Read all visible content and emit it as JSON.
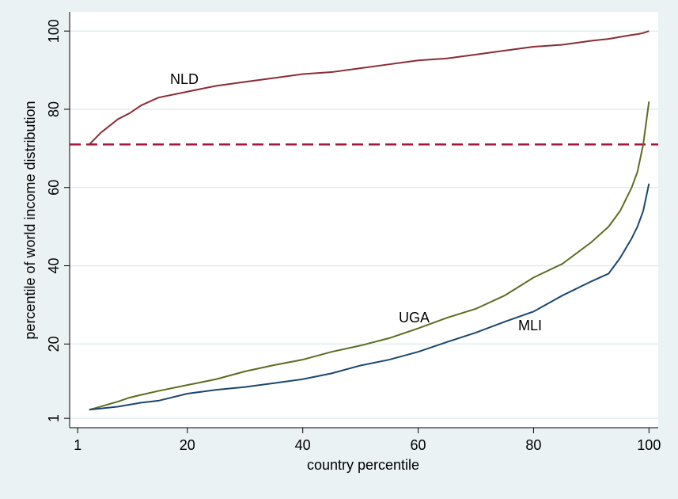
{
  "chart_data": {
    "type": "line",
    "x_label": "country percentile",
    "y_label": "percentile of world income distribution",
    "xlim": [
      -0.4,
      101.6
    ],
    "ylim": [
      -1.4,
      104.9
    ],
    "xticks": [
      1,
      20,
      40,
      60,
      80,
      100
    ],
    "yticks": [
      1,
      20,
      40,
      60,
      80,
      100
    ],
    "grid": true,
    "reference_line": {
      "value": 71,
      "color": "#a4163f"
    },
    "x": [
      3,
      5,
      8,
      10,
      12,
      15,
      20,
      25,
      30,
      35,
      40,
      45,
      50,
      55,
      60,
      65,
      70,
      75,
      80,
      85,
      90,
      93,
      95,
      97,
      98,
      99,
      100
    ],
    "series": [
      {
        "name": "NLD",
        "color": "#8c2b34",
        "values": [
          71,
          74,
          77.5,
          79,
          81,
          83,
          84.5,
          86,
          87,
          88,
          89,
          89.5,
          90.5,
          91.5,
          92.5,
          93,
          94,
          95,
          96,
          96.5,
          97.5,
          98,
          98.5,
          99,
          99.2,
          99.5,
          100
        ]
      },
      {
        "name": "UGA",
        "color": "#5c6d1f",
        "values": [
          3.2,
          4,
          5.3,
          6.3,
          7,
          8,
          9.5,
          11,
          13,
          14.6,
          16,
          18,
          19.6,
          21.5,
          24,
          26.7,
          29,
          32.4,
          37,
          40.5,
          46,
          50,
          54,
          60,
          64,
          71,
          82
        ]
      },
      {
        "name": "MLI",
        "color": "#1a476f",
        "values": [
          3.2,
          3.5,
          4,
          4.5,
          5,
          5.5,
          7.3,
          8.3,
          9,
          10,
          11,
          12.5,
          14.5,
          16,
          18,
          20.5,
          22.9,
          25.7,
          28.3,
          32.4,
          36,
          38,
          42,
          47,
          50,
          54,
          61
        ]
      }
    ]
  }
}
